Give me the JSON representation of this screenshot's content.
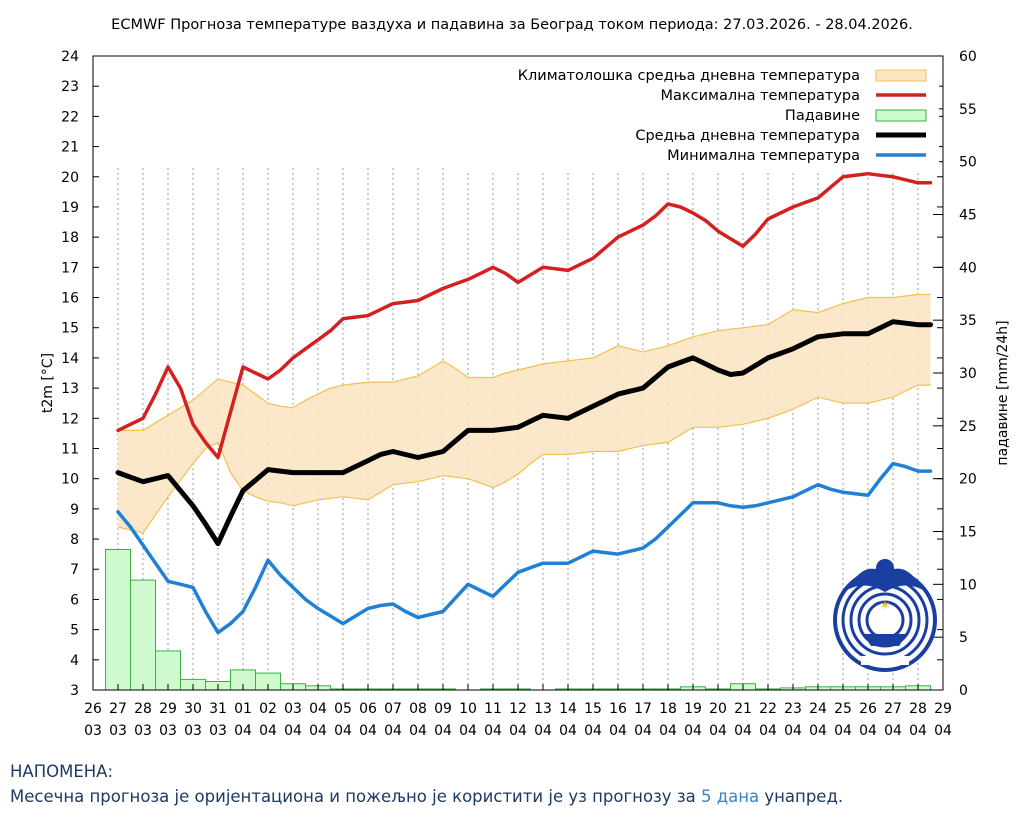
{
  "chart_data": {
    "type": "line",
    "title": "ECMWF Прогноза температуре ваздуха и падавина за Београд током периода: 27.03.2026. - 28.04.2026.",
    "ylabel": "t2m [°C]",
    "y2label": "падавине [mm/24h]",
    "ylim": [
      3,
      24
    ],
    "y2lim": [
      0,
      60
    ],
    "y_ticks": [
      "3",
      "4",
      "5",
      "6",
      "7",
      "8",
      "9",
      "10",
      "11",
      "12",
      "13",
      "14",
      "15",
      "16",
      "17",
      "18",
      "19",
      "20",
      "21",
      "22",
      "23",
      "24"
    ],
    "y2_ticks": [
      "0",
      "5",
      "10",
      "15",
      "20",
      "25",
      "30",
      "35",
      "40",
      "45",
      "50",
      "55",
      "60"
    ],
    "x_ticks": [
      {
        "day": "26",
        "month": "03"
      },
      {
        "day": "27",
        "month": "03"
      },
      {
        "day": "28",
        "month": "03"
      },
      {
        "day": "29",
        "month": "03"
      },
      {
        "day": "30",
        "month": "03"
      },
      {
        "day": "31",
        "month": "03"
      },
      {
        "day": "01",
        "month": "04"
      },
      {
        "day": "02",
        "month": "04"
      },
      {
        "day": "03",
        "month": "04"
      },
      {
        "day": "04",
        "month": "04"
      },
      {
        "day": "05",
        "month": "04"
      },
      {
        "day": "06",
        "month": "04"
      },
      {
        "day": "07",
        "month": "04"
      },
      {
        "day": "08",
        "month": "04"
      },
      {
        "day": "09",
        "month": "04"
      },
      {
        "day": "10",
        "month": "04"
      },
      {
        "day": "11",
        "month": "04"
      },
      {
        "day": "12",
        "month": "04"
      },
      {
        "day": "13",
        "month": "04"
      },
      {
        "day": "14",
        "month": "04"
      },
      {
        "day": "15",
        "month": "04"
      },
      {
        "day": "16",
        "month": "04"
      },
      {
        "day": "17",
        "month": "04"
      },
      {
        "day": "18",
        "month": "04"
      },
      {
        "day": "19",
        "month": "04"
      },
      {
        "day": "20",
        "month": "04"
      },
      {
        "day": "21",
        "month": "04"
      },
      {
        "day": "22",
        "month": "04"
      },
      {
        "day": "23",
        "month": "04"
      },
      {
        "day": "24",
        "month": "04"
      },
      {
        "day": "25",
        "month": "04"
      },
      {
        "day": "26",
        "month": "04"
      },
      {
        "day": "27",
        "month": "04"
      },
      {
        "day": "28",
        "month": "04"
      },
      {
        "day": "29",
        "month": "04"
      }
    ],
    "legend": {
      "position": "top-right",
      "entries": [
        {
          "label": "Климатолошка средња дневна температура",
          "kind": "band",
          "color": "#f2c14e",
          "fill": "#fbe6c4"
        },
        {
          "label": "Максимална температура",
          "kind": "line",
          "color": "#d42020"
        },
        {
          "label": "Падавине",
          "kind": "box",
          "color": "#3cb043",
          "fill": "#cfface"
        },
        {
          "label": "Средња дневна температура",
          "kind": "line",
          "color": "#000000"
        },
        {
          "label": "Минимална температура",
          "kind": "line",
          "color": "#1f80d6"
        }
      ]
    },
    "series": [
      {
        "name": "Максимална температура",
        "color": "#d42020",
        "x": [
          1,
          1.5,
          2,
          2.5,
          3,
          3.5,
          4,
          4.5,
          5,
          5.5,
          6,
          6.5,
          7,
          7.5,
          8,
          8.5,
          9,
          9.5,
          10,
          10.5,
          11,
          11.5,
          12,
          12.5,
          13,
          13.5,
          14,
          14.5,
          15,
          15.5,
          16,
          16.5,
          17,
          17.5,
          18,
          18.5,
          19,
          19.5,
          20,
          20.5,
          21,
          21.5,
          22,
          22.5,
          23,
          23.5,
          24,
          24.5,
          25,
          25.5,
          26,
          26.5,
          27,
          27.5,
          28,
          28.5,
          29,
          29.5,
          30,
          30.5,
          31,
          31.5,
          32,
          32.5,
          33,
          33.5
        ],
        "values": [
          11.6,
          11.8,
          12.0,
          12.8,
          13.7,
          13.0,
          11.8,
          11.2,
          10.7,
          12.2,
          13.7,
          13.5,
          13.3,
          13.6,
          14.0,
          14.3,
          14.6,
          14.9,
          15.3,
          15.35,
          15.4,
          15.6,
          15.8,
          15.85,
          15.9,
          16.1,
          16.3,
          16.45,
          16.6,
          16.8,
          17.0,
          16.8,
          16.5,
          16.75,
          17.0,
          16.95,
          16.9,
          17.1,
          17.3,
          17.65,
          18.0,
          18.2,
          18.4,
          18.7,
          19.1,
          19.0,
          18.8,
          18.55,
          18.2,
          17.95,
          17.7,
          18.1,
          18.6,
          18.8,
          19.0,
          19.15,
          19.3,
          19.65,
          20.0,
          20.05,
          20.1,
          20.05,
          20.0,
          19.9,
          19.8,
          19.8
        ]
      },
      {
        "name": "Средња дневна температура",
        "color": "#000000",
        "x": [
          1,
          1.5,
          2,
          2.5,
          3,
          3.5,
          4,
          4.5,
          5,
          5.5,
          6,
          6.5,
          7,
          7.5,
          8,
          8.5,
          9,
          9.5,
          10,
          10.5,
          11,
          11.5,
          12,
          12.5,
          13,
          13.5,
          14,
          14.5,
          15,
          15.5,
          16,
          16.5,
          17,
          17.5,
          18,
          18.5,
          19,
          19.5,
          20,
          20.5,
          21,
          21.5,
          22,
          22.5,
          23,
          23.5,
          24,
          24.5,
          25,
          25.5,
          26,
          26.5,
          27,
          27.5,
          28,
          28.5,
          29,
          29.5,
          30,
          30.5,
          31,
          31.5,
          32,
          32.5,
          33,
          33.5
        ],
        "values": [
          10.2,
          10.05,
          9.9,
          10.0,
          10.1,
          9.6,
          9.1,
          8.5,
          7.85,
          8.75,
          9.6,
          9.95,
          10.3,
          10.25,
          10.2,
          10.2,
          10.2,
          10.2,
          10.2,
          10.4,
          10.6,
          10.8,
          10.9,
          10.8,
          10.7,
          10.8,
          10.9,
          11.25,
          11.6,
          11.6,
          11.6,
          11.65,
          11.7,
          11.9,
          12.1,
          12.05,
          12.0,
          12.2,
          12.4,
          12.6,
          12.8,
          12.9,
          13.0,
          13.35,
          13.7,
          13.85,
          14.0,
          13.8,
          13.6,
          13.45,
          13.5,
          13.75,
          14.0,
          14.15,
          14.3,
          14.5,
          14.7,
          14.75,
          14.8,
          14.8,
          14.8,
          15.0,
          15.2,
          15.15,
          15.1,
          15.1
        ]
      },
      {
        "name": "Минимална температура",
        "color": "#1f80d6",
        "x": [
          1,
          1.5,
          2,
          2.5,
          3,
          3.5,
          4,
          4.5,
          5,
          5.5,
          6,
          6.5,
          7,
          7.5,
          8,
          8.5,
          9,
          9.5,
          10,
          10.5,
          11,
          11.5,
          12,
          12.5,
          13,
          13.5,
          14,
          14.5,
          15,
          15.5,
          16,
          16.5,
          17,
          17.5,
          18,
          18.5,
          19,
          19.5,
          20,
          20.5,
          21,
          21.5,
          22,
          22.5,
          23,
          23.5,
          24,
          24.5,
          25,
          25.5,
          26,
          26.5,
          27,
          27.5,
          28,
          28.5,
          29,
          29.5,
          30,
          30.5,
          31,
          31.5,
          32,
          32.5,
          33,
          33.5
        ],
        "values": [
          8.9,
          8.4,
          7.8,
          7.2,
          6.6,
          6.5,
          6.4,
          5.6,
          4.9,
          5.2,
          5.6,
          6.4,
          7.3,
          6.8,
          6.4,
          6.0,
          5.7,
          5.45,
          5.2,
          5.45,
          5.7,
          5.8,
          5.85,
          5.6,
          5.4,
          5.5,
          5.6,
          6.05,
          6.5,
          6.3,
          6.1,
          6.5,
          6.9,
          7.05,
          7.2,
          7.2,
          7.2,
          7.4,
          7.6,
          7.55,
          7.5,
          7.6,
          7.7,
          8.0,
          8.4,
          8.8,
          9.2,
          9.2,
          9.2,
          9.1,
          9.05,
          9.1,
          9.2,
          9.3,
          9.4,
          9.6,
          9.8,
          9.65,
          9.55,
          9.5,
          9.45,
          10.0,
          10.5,
          10.4,
          10.25,
          10.25
        ]
      },
      {
        "name": "Климатолошка средња дневна температура - горња граница",
        "color": "#f2c14e",
        "x": [
          1,
          1.5,
          2,
          2.5,
          3,
          3.5,
          4,
          4.5,
          5,
          5.5,
          6,
          6.5,
          7,
          7.5,
          8,
          8.5,
          9,
          9.5,
          10,
          10.5,
          11,
          11.5,
          12,
          12.5,
          13,
          13.5,
          14,
          14.5,
          15,
          15.5,
          16,
          16.5,
          17,
          17.5,
          18,
          18.5,
          19,
          19.5,
          20,
          20.5,
          21,
          21.5,
          22,
          22.5,
          23,
          23.5,
          24,
          24.5,
          25,
          25.5,
          26,
          26.5,
          27,
          27.5,
          28,
          28.5,
          29,
          29.5,
          30,
          30.5,
          31,
          31.5,
          32,
          32.5,
          33,
          33.5
        ],
        "values": [
          11.6,
          11.6,
          11.6,
          11.85,
          12.1,
          12.35,
          12.6,
          12.95,
          13.3,
          13.2,
          13.1,
          12.8,
          12.5,
          12.4,
          12.35,
          12.6,
          12.8,
          13.0,
          13.1,
          13.15,
          13.2,
          13.2,
          13.2,
          13.3,
          13.4,
          13.65,
          13.9,
          13.65,
          13.35,
          13.35,
          13.35,
          13.5,
          13.6,
          13.7,
          13.8,
          13.85,
          13.9,
          13.95,
          14.0,
          14.2,
          14.4,
          14.3,
          14.2,
          14.3,
          14.4,
          14.55,
          14.7,
          14.8,
          14.9,
          14.95,
          15.0,
          15.05,
          15.1,
          15.35,
          15.6,
          15.55,
          15.5,
          15.65,
          15.8,
          15.9,
          16.0,
          16.0,
          16.0,
          16.05,
          16.1,
          16.1
        ]
      },
      {
        "name": "Климатолошка средња дневна температура - доња граница",
        "color": "#f2c14e",
        "x": [
          1,
          1.5,
          2,
          2.5,
          3,
          3.5,
          4,
          4.5,
          5,
          5.5,
          6,
          6.5,
          7,
          7.5,
          8,
          8.5,
          9,
          9.5,
          10,
          10.5,
          11,
          11.5,
          12,
          12.5,
          13,
          13.5,
          14,
          14.5,
          15,
          15.5,
          16,
          16.5,
          17,
          17.5,
          18,
          18.5,
          19,
          19.5,
          20,
          20.5,
          21,
          21.5,
          22,
          22.5,
          23,
          23.5,
          24,
          24.5,
          25,
          25.5,
          26,
          26.5,
          27,
          27.5,
          28,
          28.5,
          29,
          29.5,
          30,
          30.5,
          31,
          31.5,
          32,
          32.5,
          33,
          33.5
        ],
        "values": [
          8.4,
          8.3,
          8.2,
          8.8,
          9.4,
          9.95,
          10.5,
          11.0,
          11.2,
          10.2,
          9.6,
          9.4,
          9.25,
          9.2,
          9.1,
          9.2,
          9.3,
          9.35,
          9.4,
          9.35,
          9.3,
          9.55,
          9.8,
          9.85,
          9.9,
          10.0,
          10.1,
          10.05,
          10.0,
          9.85,
          9.7,
          9.9,
          10.15,
          10.5,
          10.8,
          10.8,
          10.8,
          10.85,
          10.9,
          10.9,
          10.9,
          11.0,
          11.1,
          11.15,
          11.2,
          11.45,
          11.7,
          11.7,
          11.7,
          11.75,
          11.8,
          11.9,
          12.0,
          12.15,
          12.3,
          12.5,
          12.7,
          12.6,
          12.5,
          12.5,
          12.5,
          12.6,
          12.7,
          12.9,
          13.1,
          13.1
        ]
      }
    ],
    "precipitation": {
      "name": "Падавине",
      "unit": "mm/24h",
      "x": [
        1,
        2,
        3,
        4,
        5,
        6,
        7,
        8,
        9,
        10,
        11,
        12,
        13,
        14,
        15,
        16,
        17,
        18,
        19,
        20,
        21,
        22,
        23,
        24,
        25,
        26,
        27,
        28,
        29,
        30,
        31,
        32,
        33
      ],
      "values": [
        13.3,
        10.4,
        3.7,
        1.0,
        0.8,
        1.9,
        1.6,
        0.6,
        0.4,
        0.1,
        0.1,
        0.1,
        0.1,
        0.1,
        0.0,
        0.1,
        0.1,
        0.0,
        0.1,
        0.1,
        0.1,
        0.1,
        0.1,
        0.3,
        0.1,
        0.6,
        0.1,
        0.2,
        0.3,
        0.3,
        0.3,
        0.3,
        0.4
      ]
    }
  },
  "logo": {
    "name": "RHMZ Srbije emblem"
  },
  "note": {
    "title": "НАПОМЕНА:",
    "text_before": "Месечна прогноза је оријентациона и пожељно је користити је уз прогнозу за ",
    "highlight": "5 дана",
    "text_after": " унапред."
  }
}
